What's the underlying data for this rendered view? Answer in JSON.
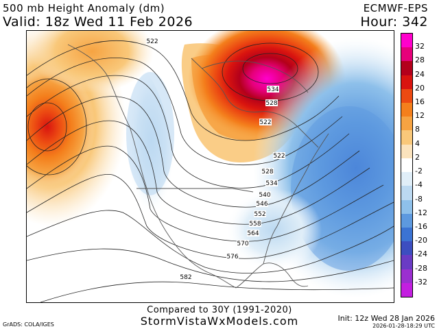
{
  "header": {
    "title": "500 mb Height Anomaly (dm)",
    "valid": "Valid: 18z Wed 11 Feb 2026",
    "model": "ECMWF-EPS",
    "hour": "Hour: 342"
  },
  "colorbar": {
    "labels": [
      "32",
      "28",
      "24",
      "20",
      "16",
      "12",
      "8",
      "4",
      "2",
      "-2",
      "-4",
      "-8",
      "-12",
      "-16",
      "-20",
      "-24",
      "-28",
      "-32"
    ],
    "colors": [
      "#ff00cc",
      "#e6007a",
      "#b3001b",
      "#d9140f",
      "#ec4a12",
      "#f47f1c",
      "#f6a342",
      "#f9c87a",
      "#fbe3bd",
      "#ffffff",
      "#e0eef8",
      "#bcd9f1",
      "#8ec0ea",
      "#5d99df",
      "#3b73d3",
      "#3c4ec0",
      "#6a3bc4",
      "#9b2fd0",
      "#c31fe0"
    ]
  },
  "contour_labels": [
    {
      "text": "522"
    },
    {
      "text": "534"
    },
    {
      "text": "528"
    },
    {
      "text": "522"
    },
    {
      "text": "522"
    },
    {
      "text": "528"
    },
    {
      "text": "534"
    },
    {
      "text": "540"
    },
    {
      "text": "546"
    },
    {
      "text": "552"
    },
    {
      "text": "558"
    },
    {
      "text": "564"
    },
    {
      "text": "570"
    },
    {
      "text": "576"
    },
    {
      "text": "582"
    }
  ],
  "footer": {
    "compare": "Compared to 30Y (1991-2020)",
    "site": "StormVistaWxModels.com",
    "source": "GrADS: COLA/IGES",
    "init": "Init: 12z Wed 28 Jan 2026",
    "timestamp": "2026-01-28-18:29 UTC"
  }
}
